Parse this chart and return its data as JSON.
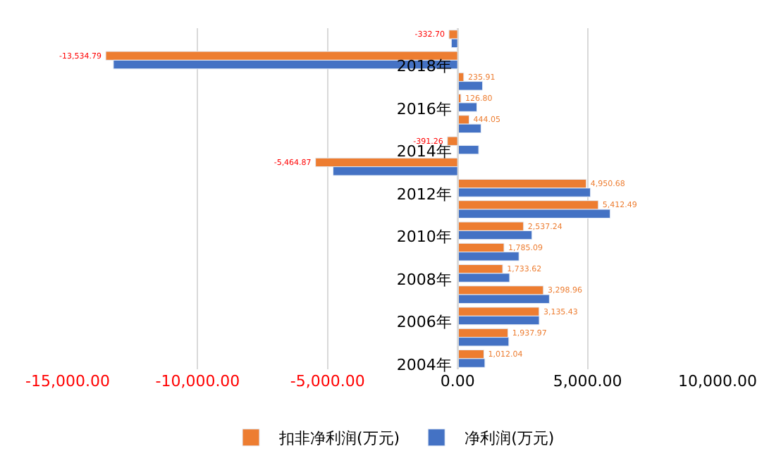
{
  "chart_data": {
    "type": "bar",
    "orientation": "horizontal",
    "categories": [
      null,
      "2018年",
      null,
      "2016年",
      null,
      "2014年",
      null,
      "2012年",
      null,
      "2010年",
      null,
      "2008年",
      null,
      "2006年",
      null,
      "2004年"
    ],
    "series": [
      {
        "name": "扣非净利润(万元)",
        "color": "#ed7d31",
        "values": [
          -332.7,
          -13534.79,
          235.91,
          126.8,
          444.05,
          -391.26,
          -5464.87,
          4950.68,
          5412.49,
          2537.24,
          1785.09,
          1733.62,
          3298.96,
          3135.43,
          1937.97,
          1012.04
        ],
        "value_labels": [
          "-332.70",
          "-13,534.79",
          "235.91",
          "126.80",
          "444.05",
          "-391.26",
          "-5,464.87",
          "4,950.68",
          "5,412.49",
          "2,537.24",
          "1,785.09",
          "1,733.62",
          "3,298.96",
          "3,135.43",
          "1,937.97",
          "1,012.04"
        ]
      },
      {
        "name": "净利润(万元)",
        "color": "#4472c4",
        "values": [
          -240,
          -13240,
          960,
          740,
          900,
          810,
          -4790,
          5110,
          5870,
          2860,
          2360,
          2000,
          3530,
          3140,
          1970,
          1050
        ]
      }
    ],
    "xlim": [
      -15000,
      10000
    ],
    "xticks": [
      {
        "value": -15000,
        "label": "-15,000.00"
      },
      {
        "value": -10000,
        "label": "-10,000.00"
      },
      {
        "value": -5000,
        "label": "-5,000.00"
      },
      {
        "value": 0,
        "label": "0.00"
      },
      {
        "value": 5000,
        "label": "5,000.00"
      },
      {
        "value": 10000,
        "label": "10,000.00"
      }
    ],
    "grid": "x",
    "legend": "bottom"
  }
}
